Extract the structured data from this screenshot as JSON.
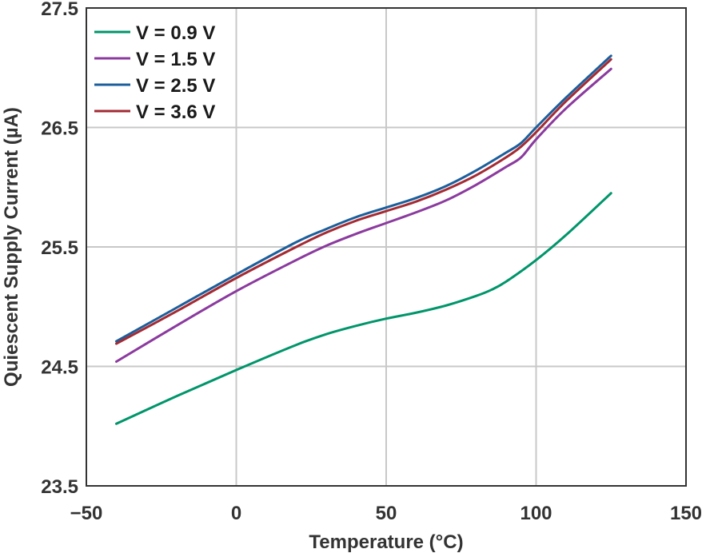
{
  "chart_data": {
    "type": "line",
    "title": "",
    "xlabel": "Temperature (°C)",
    "ylabel": "Quiescent Supply Current (µA)",
    "xlim": [
      -50,
      150
    ],
    "ylim": [
      23.5,
      27.5
    ],
    "x_ticks": [
      -50,
      0,
      50,
      100,
      150
    ],
    "x_tick_labels": [
      "−50",
      "0",
      "50",
      "100",
      "150"
    ],
    "y_ticks": [
      23.5,
      24.5,
      25.5,
      26.5,
      27.5
    ],
    "y_tick_labels": [
      "23.5",
      "24.5",
      "25.5",
      "26.5",
      "27.5"
    ],
    "grid": true,
    "legend_position": "top-left",
    "series": [
      {
        "name": "V = 0.9 V",
        "color": "#00956a",
        "x": [
          -40,
          -20,
          0,
          20,
          30,
          40,
          50,
          60,
          70,
          80,
          85,
          90,
          100,
          110,
          125
        ],
        "y": [
          24.02,
          24.25,
          24.47,
          24.68,
          24.77,
          24.84,
          24.9,
          24.95,
          25.01,
          25.09,
          25.14,
          25.21,
          25.39,
          25.6,
          25.95
        ]
      },
      {
        "name": "V = 1.5 V",
        "color": "#8b3a9e",
        "x": [
          -40,
          -20,
          0,
          20,
          30,
          40,
          50,
          60,
          70,
          80,
          90,
          95,
          100,
          110,
          125
        ],
        "y": [
          24.54,
          24.84,
          25.13,
          25.39,
          25.51,
          25.61,
          25.7,
          25.79,
          25.89,
          26.02,
          26.17,
          26.25,
          26.4,
          26.66,
          26.99
        ]
      },
      {
        "name": "V = 2.5 V",
        "color": "#1b5e9b",
        "x": [
          -40,
          -20,
          0,
          20,
          30,
          40,
          50,
          60,
          70,
          80,
          90,
          95,
          100,
          110,
          125
        ],
        "y": [
          24.71,
          24.99,
          25.27,
          25.54,
          25.65,
          25.75,
          25.83,
          25.91,
          26.01,
          26.14,
          26.29,
          26.37,
          26.5,
          26.75,
          27.1
        ]
      },
      {
        "name": "V = 3.6 V",
        "color": "#a32a33",
        "x": [
          -40,
          -20,
          0,
          20,
          30,
          40,
          50,
          60,
          70,
          80,
          90,
          95,
          100,
          110,
          125
        ],
        "y": [
          24.69,
          24.96,
          25.24,
          25.5,
          25.62,
          25.72,
          25.8,
          25.88,
          25.98,
          26.1,
          26.25,
          26.34,
          26.46,
          26.72,
          27.07
        ]
      }
    ]
  }
}
